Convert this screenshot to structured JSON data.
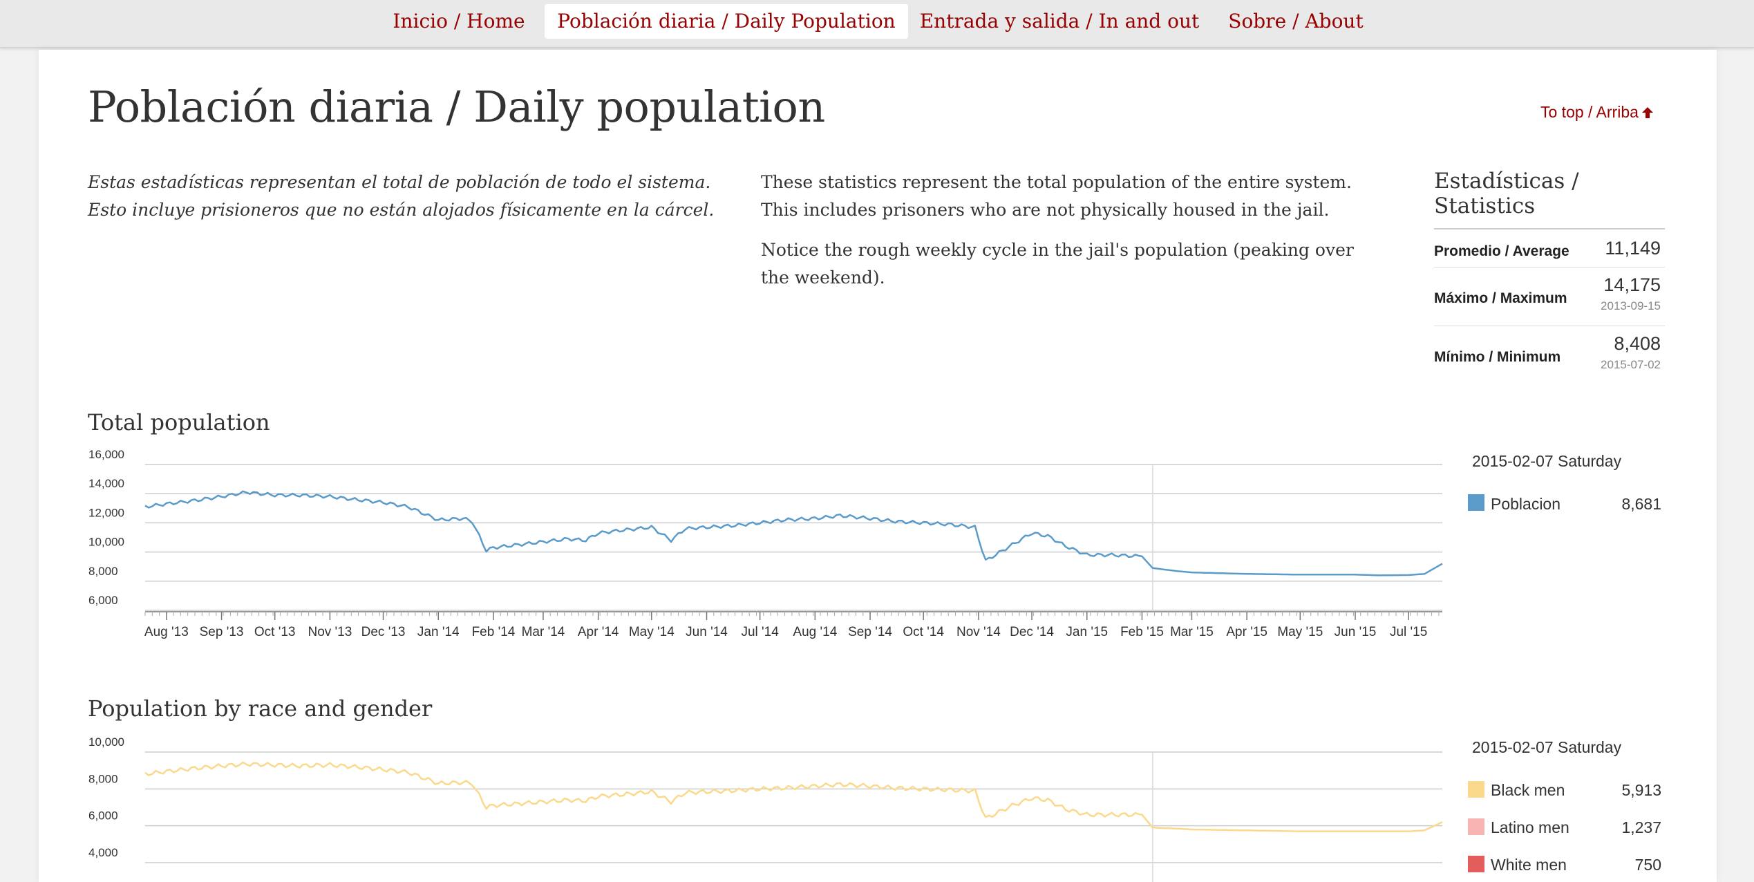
{
  "nav": {
    "items": [
      {
        "label": "Inicio / Home",
        "active": false
      },
      {
        "label": "Población diaria / Daily Population",
        "active": true
      },
      {
        "label": "Entrada y salida / In and out",
        "active": false
      },
      {
        "label": "Sobre / About",
        "active": false
      }
    ]
  },
  "page": {
    "title": "Población diaria / Daily population",
    "to_top": "To top / Arriba",
    "to_top_icon": "arrow-up-icon",
    "intro_es": "Estas estadísticas representan el total de población de todo el sistema. Esto incluye prisioneros que no están alojados físicamente en la cárcel.",
    "intro_en_1": "These statistics represent the total population of the entire system. This includes prisoners who are not physically housed in the jail.",
    "intro_en_2": "Notice the rough weekly cycle in the jail's population (peaking over the weekend)."
  },
  "stats": {
    "title": "Estadísticas / Statistics",
    "rows": [
      {
        "label": "Promedio / Average",
        "value": "11,149",
        "date": ""
      },
      {
        "label": "Máximo / Maximum",
        "value": "14,175",
        "date": "2013-09-15"
      },
      {
        "label": "Mínimo / Minimum",
        "value": "8,408",
        "date": "2015-07-02"
      }
    ]
  },
  "colors": {
    "accent": "#990000",
    "poblacion": "#5b9bc9",
    "black_men": "#fbd98c",
    "latino_men": "#f7b4b2",
    "white_men": "#e35d5d",
    "grid": "#cccccc"
  },
  "chart_data": [
    {
      "type": "line",
      "title": "Total population",
      "hover_date": "2015-02-07 Saturday",
      "ylim": [
        6000,
        16000
      ],
      "yticks": [
        6000,
        8000,
        10000,
        12000,
        14000,
        16000
      ],
      "ytick_labels": [
        "6,000",
        "8,000",
        "10,000",
        "12,000",
        "14,000",
        "16,000"
      ],
      "xlim": [
        "2013-07-20",
        "2015-07-20"
      ],
      "xtick_labels": [
        "Aug '13",
        "Sep '13",
        "Oct '13",
        "Nov '13",
        "Dec '13",
        "Jan '14",
        "Feb '14",
        "Mar '14",
        "Apr '14",
        "May '14",
        "Jun '14",
        "Jul '14",
        "Aug '14",
        "Sep '14",
        "Oct '14",
        "Nov '14",
        "Dec '14",
        "Jan '15",
        "Feb '15",
        "Mar '15",
        "Apr '15",
        "May '15",
        "Jun '15",
        "Jul '15"
      ],
      "xtick_dates": [
        "2013-08-01",
        "2013-09-01",
        "2013-10-01",
        "2013-11-01",
        "2013-12-01",
        "2014-01-01",
        "2014-02-01",
        "2014-03-01",
        "2014-04-01",
        "2014-05-01",
        "2014-06-01",
        "2014-07-01",
        "2014-08-01",
        "2014-09-01",
        "2014-10-01",
        "2014-11-01",
        "2014-12-01",
        "2015-01-01",
        "2015-02-01",
        "2015-03-01",
        "2015-04-01",
        "2015-05-01",
        "2015-06-01",
        "2015-07-01"
      ],
      "hover_x": "2015-02-07",
      "grid": true,
      "legend_position": "right",
      "series": [
        {
          "name": "Poblacion",
          "color_key": "poblacion",
          "legend_value": "8,681",
          "x": [
            "2013-07-20",
            "2013-08-01",
            "2013-08-15",
            "2013-09-01",
            "2013-09-15",
            "2013-10-01",
            "2013-10-15",
            "2013-11-01",
            "2013-11-15",
            "2013-12-01",
            "2013-12-15",
            "2014-01-01",
            "2014-01-15",
            "2014-01-20",
            "2014-01-28",
            "2014-02-01",
            "2014-02-15",
            "2014-03-01",
            "2014-03-15",
            "2014-03-25",
            "2014-04-01",
            "2014-04-15",
            "2014-05-01",
            "2014-05-12",
            "2014-05-20",
            "2014-06-01",
            "2014-06-15",
            "2014-07-01",
            "2014-07-15",
            "2014-08-01",
            "2014-08-15",
            "2014-09-01",
            "2014-09-15",
            "2014-10-01",
            "2014-10-15",
            "2014-10-30",
            "2014-11-05",
            "2014-11-20",
            "2014-12-01",
            "2014-12-10",
            "2014-12-20",
            "2015-01-01",
            "2015-01-15",
            "2015-02-01",
            "2015-02-07",
            "2015-02-20",
            "2015-03-01",
            "2015-04-01",
            "2015-05-01",
            "2015-05-20",
            "2015-06-01",
            "2015-06-15",
            "2015-07-01",
            "2015-07-10",
            "2015-07-20"
          ],
          "y": [
            13100,
            13300,
            13500,
            13800,
            14100,
            13900,
            13900,
            13800,
            13600,
            13400,
            13100,
            12200,
            12300,
            12100,
            10100,
            10300,
            10500,
            10700,
            10900,
            10800,
            11300,
            11500,
            11700,
            10800,
            11600,
            11700,
            11800,
            12000,
            12200,
            12300,
            12500,
            12300,
            12100,
            12000,
            11900,
            11700,
            9400,
            10500,
            11300,
            11100,
            10400,
            9800,
            9800,
            9700,
            8900,
            8700,
            8600,
            8500,
            8450,
            8450,
            8450,
            8400,
            8420,
            8500,
            9200
          ]
        }
      ]
    },
    {
      "type": "line",
      "title": "Population by race and gender",
      "hover_date": "2015-02-07 Saturday",
      "ylim": [
        4000,
        10000
      ],
      "yticks": [
        4000,
        6000,
        8000,
        10000
      ],
      "ytick_labels": [
        "4,000",
        "6,000",
        "8,000",
        "10,000"
      ],
      "xlim": [
        "2013-07-20",
        "2015-07-20"
      ],
      "hover_x": "2015-02-07",
      "grid": true,
      "legend_position": "right",
      "series": [
        {
          "name": "Black men",
          "color_key": "black_men",
          "legend_value": "5,913",
          "x": [
            "2013-07-20",
            "2013-08-01",
            "2013-08-15",
            "2013-09-01",
            "2013-09-15",
            "2013-10-01",
            "2013-10-15",
            "2013-11-01",
            "2013-11-15",
            "2013-12-01",
            "2013-12-15",
            "2014-01-01",
            "2014-01-15",
            "2014-01-20",
            "2014-01-28",
            "2014-02-01",
            "2014-02-15",
            "2014-03-01",
            "2014-03-15",
            "2014-03-25",
            "2014-04-01",
            "2014-04-15",
            "2014-05-01",
            "2014-05-12",
            "2014-05-20",
            "2014-06-01",
            "2014-06-15",
            "2014-07-01",
            "2014-07-15",
            "2014-08-01",
            "2014-08-15",
            "2014-09-01",
            "2014-09-15",
            "2014-10-01",
            "2014-10-15",
            "2014-10-30",
            "2014-11-05",
            "2014-11-20",
            "2014-12-01",
            "2014-12-10",
            "2014-12-20",
            "2015-01-01",
            "2015-01-15",
            "2015-02-01",
            "2015-02-07",
            "2015-02-20",
            "2015-03-01",
            "2015-04-01",
            "2015-05-01",
            "2015-05-20",
            "2015-06-01",
            "2015-06-15",
            "2015-07-01",
            "2015-07-10",
            "2015-07-20"
          ],
          "y": [
            8800,
            8950,
            9100,
            9250,
            9350,
            9300,
            9250,
            9300,
            9200,
            9050,
            8900,
            8300,
            8350,
            8300,
            7000,
            7100,
            7200,
            7300,
            7400,
            7350,
            7600,
            7700,
            7850,
            7300,
            7800,
            7850,
            7900,
            8000,
            8050,
            8150,
            8250,
            8150,
            8050,
            8000,
            7950,
            7900,
            6400,
            7100,
            7500,
            7400,
            6900,
            6600,
            6600,
            6600,
            5900,
            5850,
            5800,
            5750,
            5700,
            5700,
            5700,
            5700,
            5700,
            5750,
            6200
          ]
        },
        {
          "name": "Latino men",
          "color_key": "latino_men",
          "legend_value": "1,237"
        },
        {
          "name": "White men",
          "color_key": "white_men",
          "legend_value": "750"
        }
      ]
    }
  ]
}
